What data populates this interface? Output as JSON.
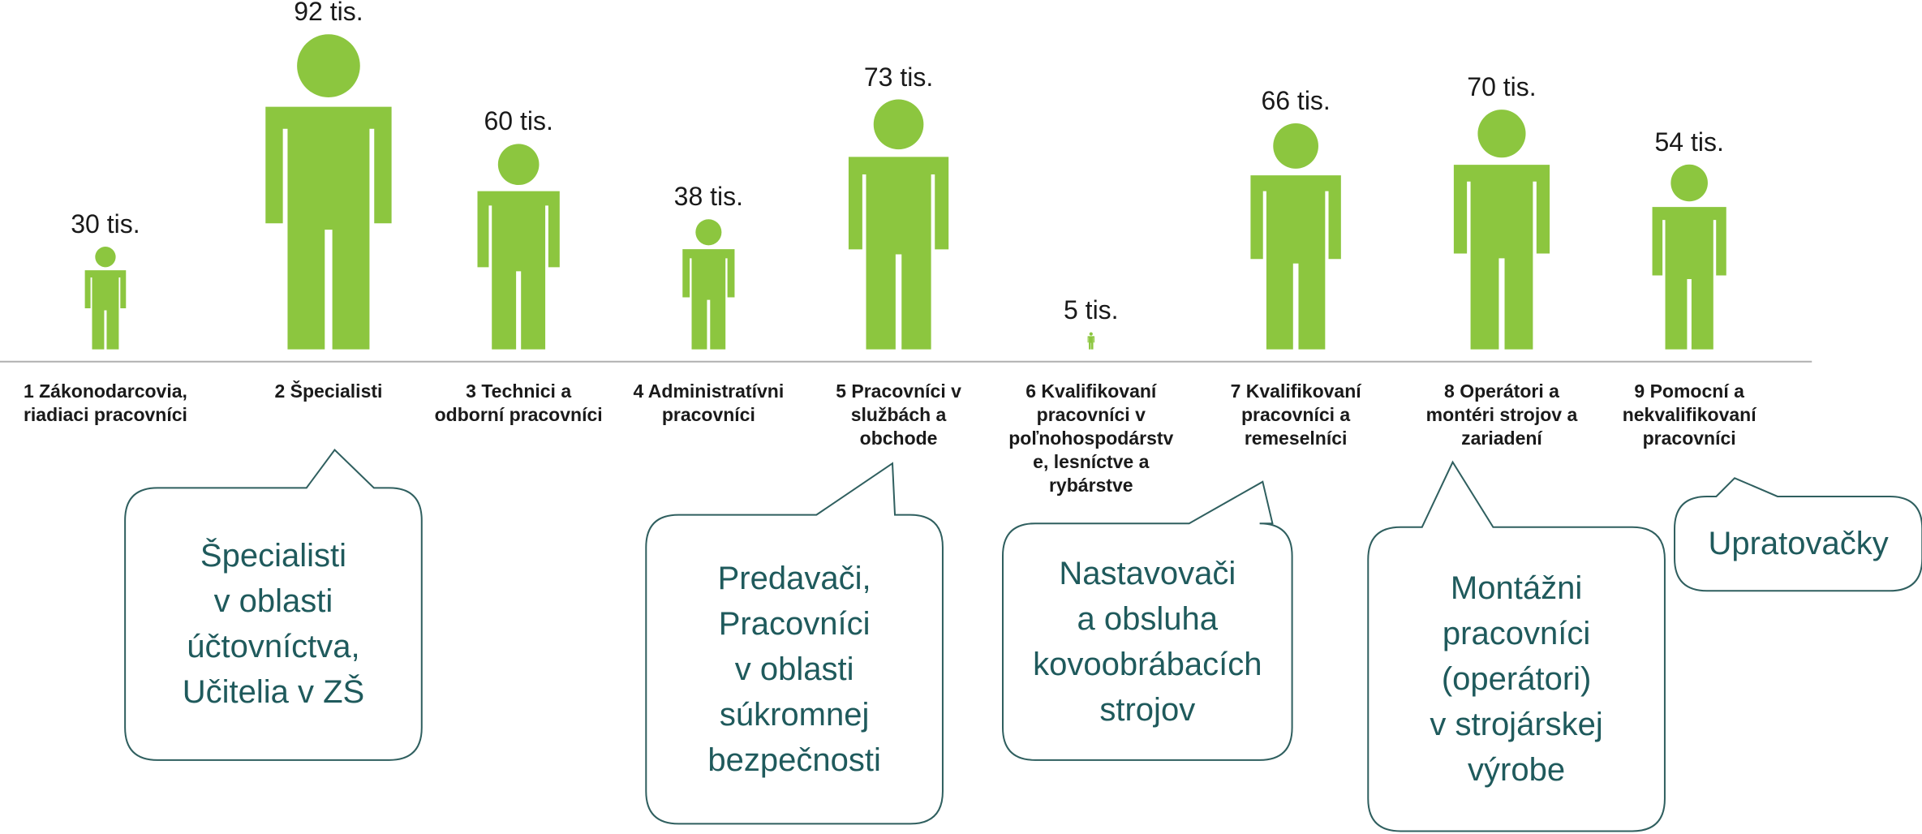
{
  "chart_data": {
    "type": "pictogram",
    "categories": [
      "1 Zákonodarcovia,\nriadiaci pracovníci",
      "2 Špecialisti",
      "3 Technici a\nodborní pracovníci",
      "4 Administratívni\npracovníci",
      "5 Pracovníci v\nslužbách a\nobchode",
      "6 Kvalifikovaní\npracovníci v\npoľnohospodárstv\ne, lesníctve a\nrybárstve",
      "7 Kvalifikovaní\npracovníci a\nremeselníci",
      "8 Operátori a\nmontéri strojov a\nzariadení",
      "9 Pomocní a\nnekvalifikovaní\npracovníci"
    ],
    "values": [
      30,
      92,
      60,
      38,
      73,
      5,
      66,
      70,
      54
    ],
    "value_labels": [
      "30 tis.",
      "92 tis.",
      "60 tis.",
      "38 tis.",
      "73 tis.",
      "5 tis.",
      "66 tis.",
      "70 tis.",
      "54 tis."
    ],
    "color": "#8cc63f",
    "annotations": [
      {
        "text": "Špecialisti\nv oblasti\núčtovníctva,\nUčitelia v ZŠ"
      },
      {
        "text": "Predavači,\nPracovníci\nv oblasti\nsúkromnej\nbezpečnosti"
      },
      {
        "text": "Nastavovači\na obsluha\nkovoobrábacích\nstrojov"
      },
      {
        "text": "Montážni\npracovníci\n(operátori)\nv strojárskej\nvýrobe"
      },
      {
        "text": "Upratovačky"
      }
    ]
  }
}
